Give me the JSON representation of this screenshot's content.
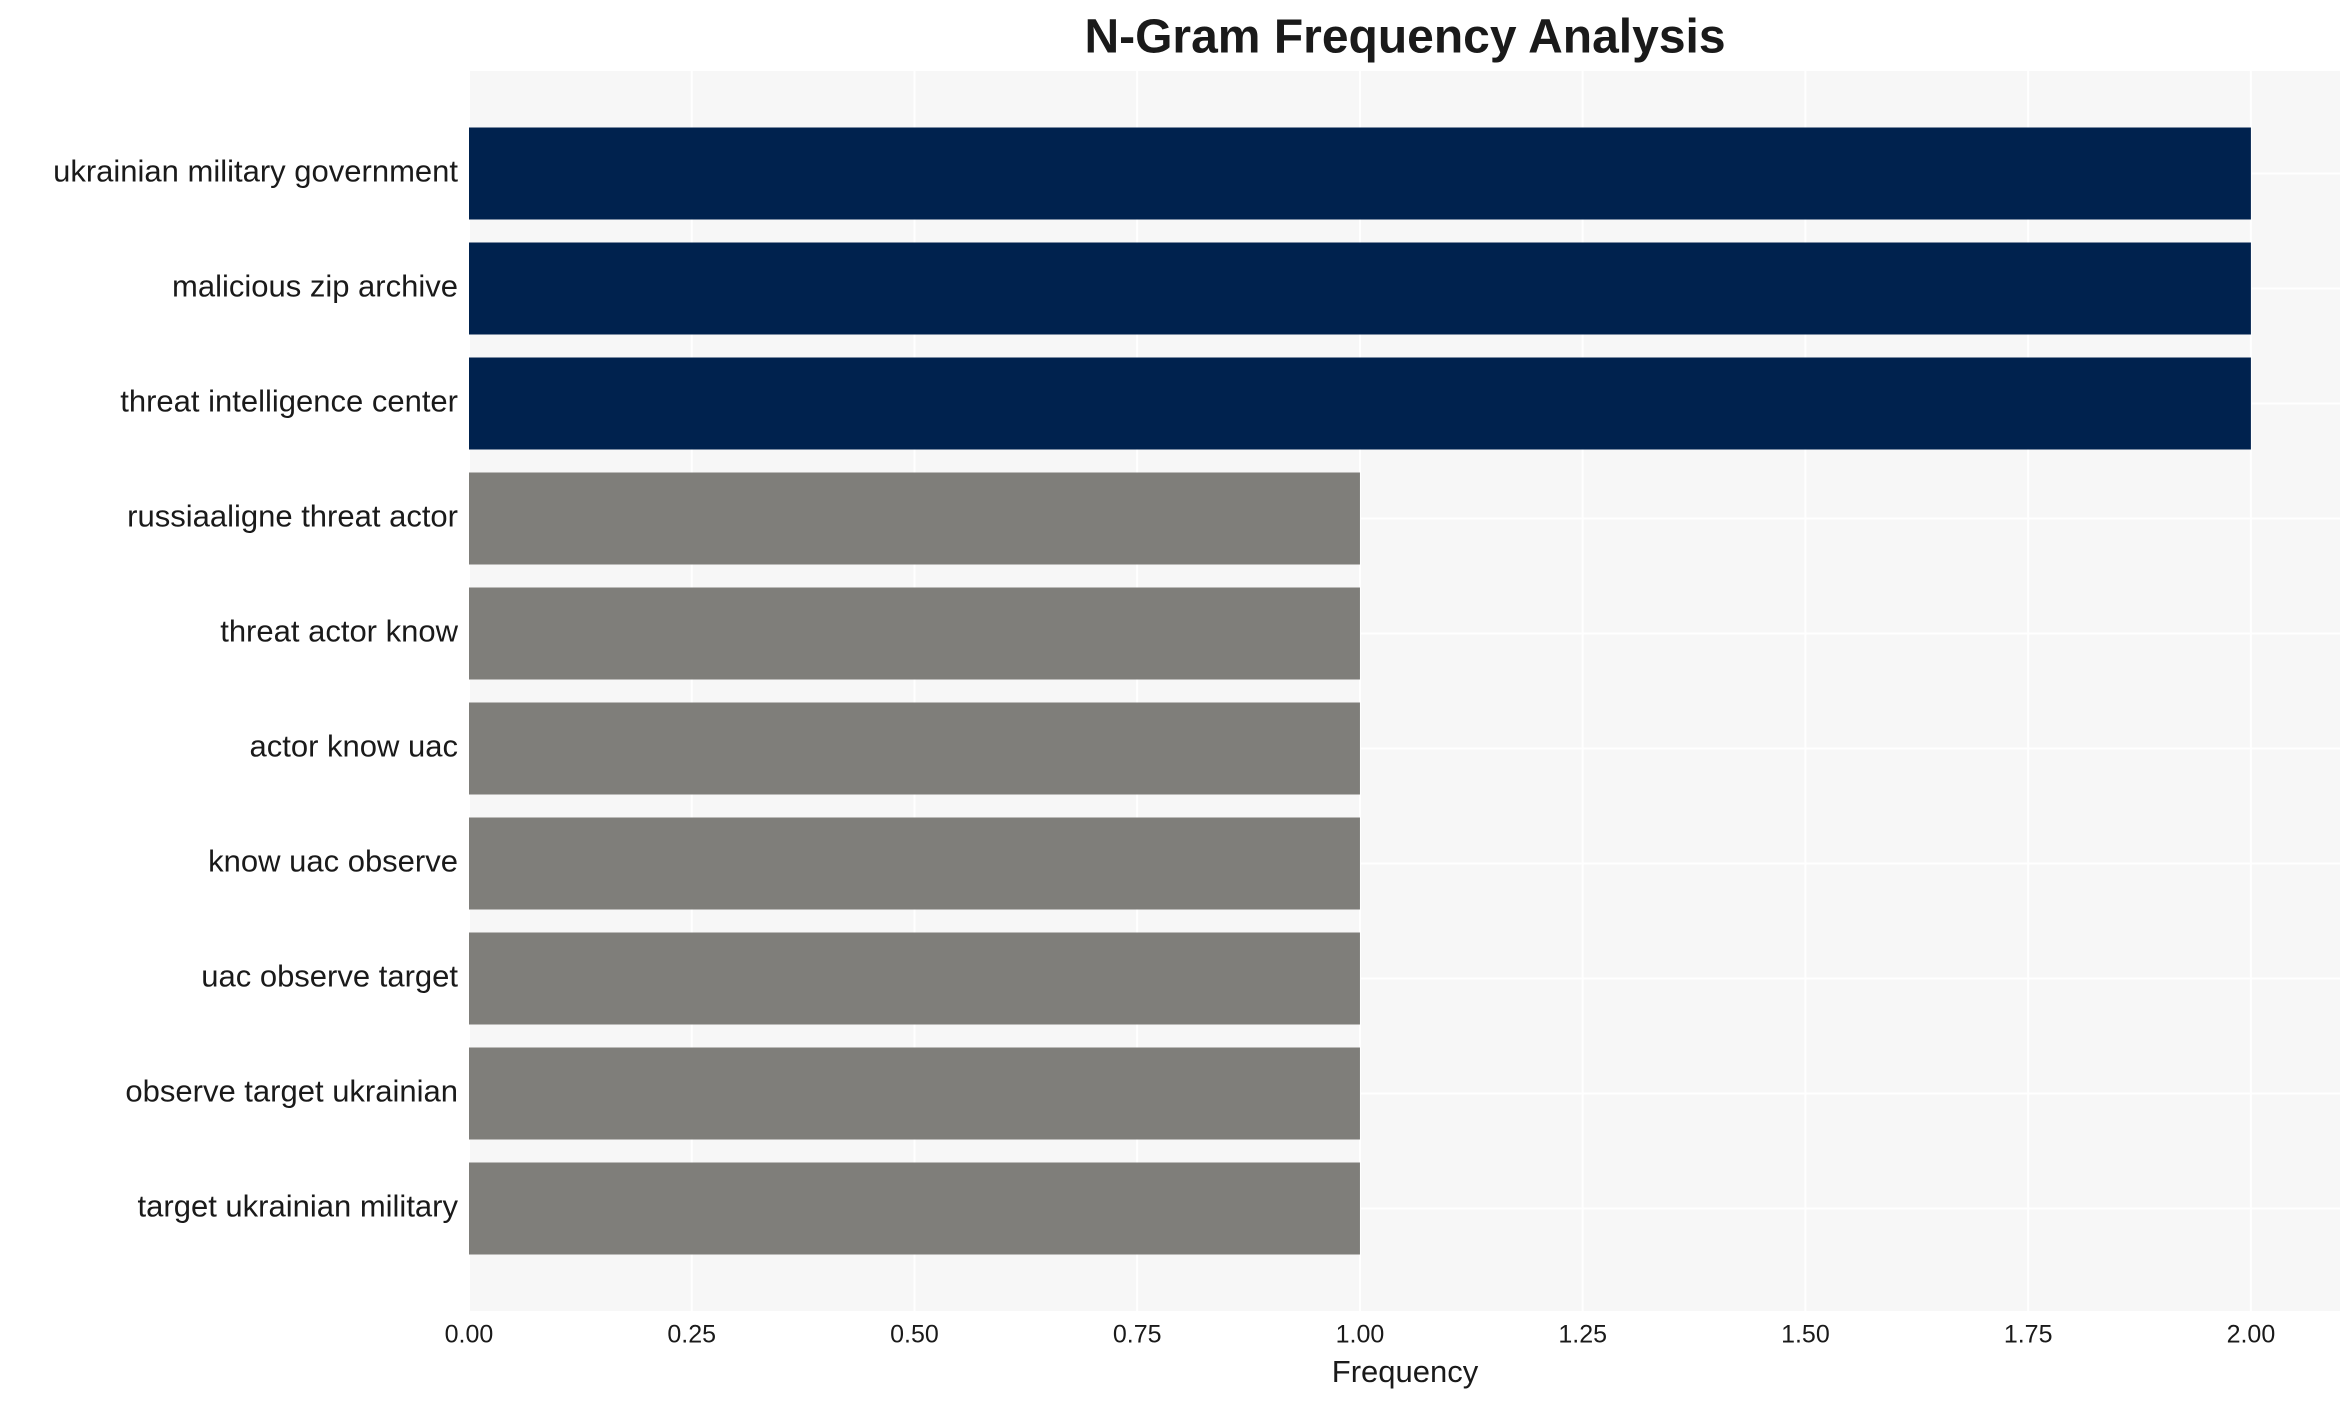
{
  "chart_data": {
    "type": "barh",
    "title": "N-Gram Frequency Analysis",
    "x_label": "Frequency",
    "categories": [
      "ukrainian military government",
      "malicious zip archive",
      "threat intelligence center",
      "russiaaligne threat actor",
      "threat actor know",
      "actor know uac",
      "know uac observe",
      "uac observe target",
      "observe target ukrainian",
      "target ukrainian military"
    ],
    "values": [
      2,
      2,
      2,
      1,
      1,
      1,
      1,
      1,
      1,
      1
    ],
    "colors": [
      "#00224e",
      "#00224e",
      "#00224e",
      "#7f7e7a",
      "#7f7e7a",
      "#7f7e7a",
      "#7f7e7a",
      "#7f7e7a",
      "#7f7e7a",
      "#7f7e7a"
    ],
    "xlim": [
      0,
      2.1
    ],
    "xticks": [
      {
        "value": 0,
        "label": "0.00"
      },
      {
        "value": 0.25,
        "label": "0.25"
      },
      {
        "value": 0.5,
        "label": "0.50"
      },
      {
        "value": 0.75,
        "label": "0.75"
      },
      {
        "value": 1,
        "label": "1.00"
      },
      {
        "value": 1.25,
        "label": "1.25"
      },
      {
        "value": 1.5,
        "label": "1.50"
      },
      {
        "value": 1.75,
        "label": "1.75"
      },
      {
        "value": 2,
        "label": "2.00"
      }
    ],
    "grid": true
  }
}
